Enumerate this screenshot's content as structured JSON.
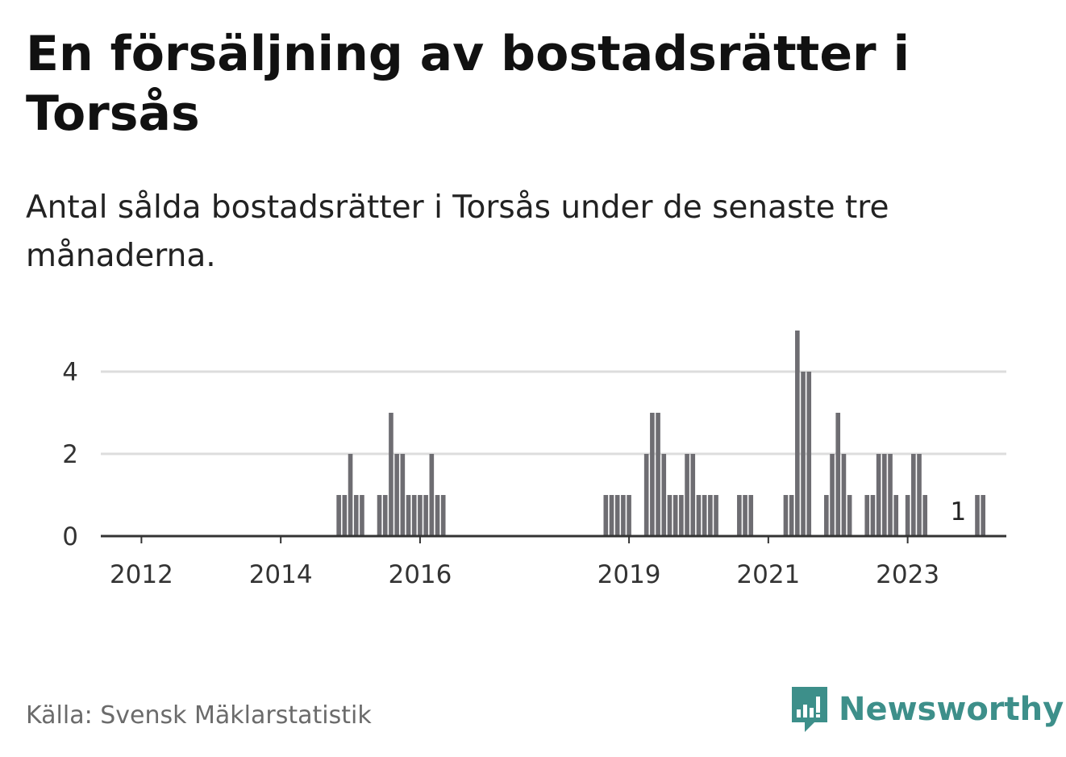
{
  "title": "En försäljning av bostadsrätter i Torsås",
  "subtitle": "Antal sålda bostadsrätter i Torsås under de senaste tre månaderna.",
  "source": "Källa: Svensk Mäklarstatistik",
  "brand": "Newsworthy",
  "colors": {
    "bar": "#6e6d72",
    "highlight": "#2aa39a",
    "grid": "#dddddd",
    "axis": "#333333",
    "brand": "#3d8f8a"
  },
  "chart_data": {
    "type": "bar",
    "title": "En försäljning av bostadsrätter i Torsås",
    "xlabel": "",
    "ylabel": "",
    "ylim": [
      0,
      5
    ],
    "y_ticks": [
      0,
      2,
      4
    ],
    "x_ticks": [
      "2012",
      "2014",
      "2016",
      "2019",
      "2021",
      "2023"
    ],
    "x_tick_months": [
      0,
      24,
      48,
      84,
      108,
      132
    ],
    "x_range_months": [
      -7,
      149
    ],
    "start": "2012-01",
    "annotation": {
      "month": 141,
      "label": "1"
    },
    "highlight_month": 141,
    "values": [
      0,
      0,
      0,
      0,
      0,
      0,
      0,
      0,
      0,
      0,
      0,
      0,
      0,
      0,
      0,
      0,
      0,
      0,
      0,
      0,
      0,
      0,
      0,
      0,
      0,
      0,
      0,
      0,
      0,
      0,
      0,
      0,
      0,
      0,
      1,
      1,
      2,
      1,
      1,
      0,
      0,
      1,
      1,
      3,
      2,
      2,
      1,
      1,
      1,
      1,
      2,
      1,
      1,
      0,
      0,
      0,
      0,
      0,
      0,
      0,
      0,
      0,
      0,
      0,
      0,
      0,
      0,
      0,
      0,
      0,
      0,
      0,
      0,
      0,
      0,
      0,
      0,
      0,
      0,
      0,
      1,
      1,
      1,
      1,
      1,
      0,
      0,
      2,
      3,
      3,
      2,
      1,
      1,
      1,
      2,
      2,
      1,
      1,
      1,
      1,
      0,
      0,
      0,
      1,
      1,
      1,
      0,
      0,
      0,
      0,
      0,
      1,
      1,
      5,
      4,
      4,
      0,
      0,
      1,
      2,
      3,
      2,
      1,
      0,
      0,
      1,
      1,
      2,
      2,
      2,
      1,
      0,
      1,
      2,
      2,
      1,
      0,
      0,
      0,
      0,
      0,
      0,
      0,
      0,
      1,
      1
    ]
  }
}
